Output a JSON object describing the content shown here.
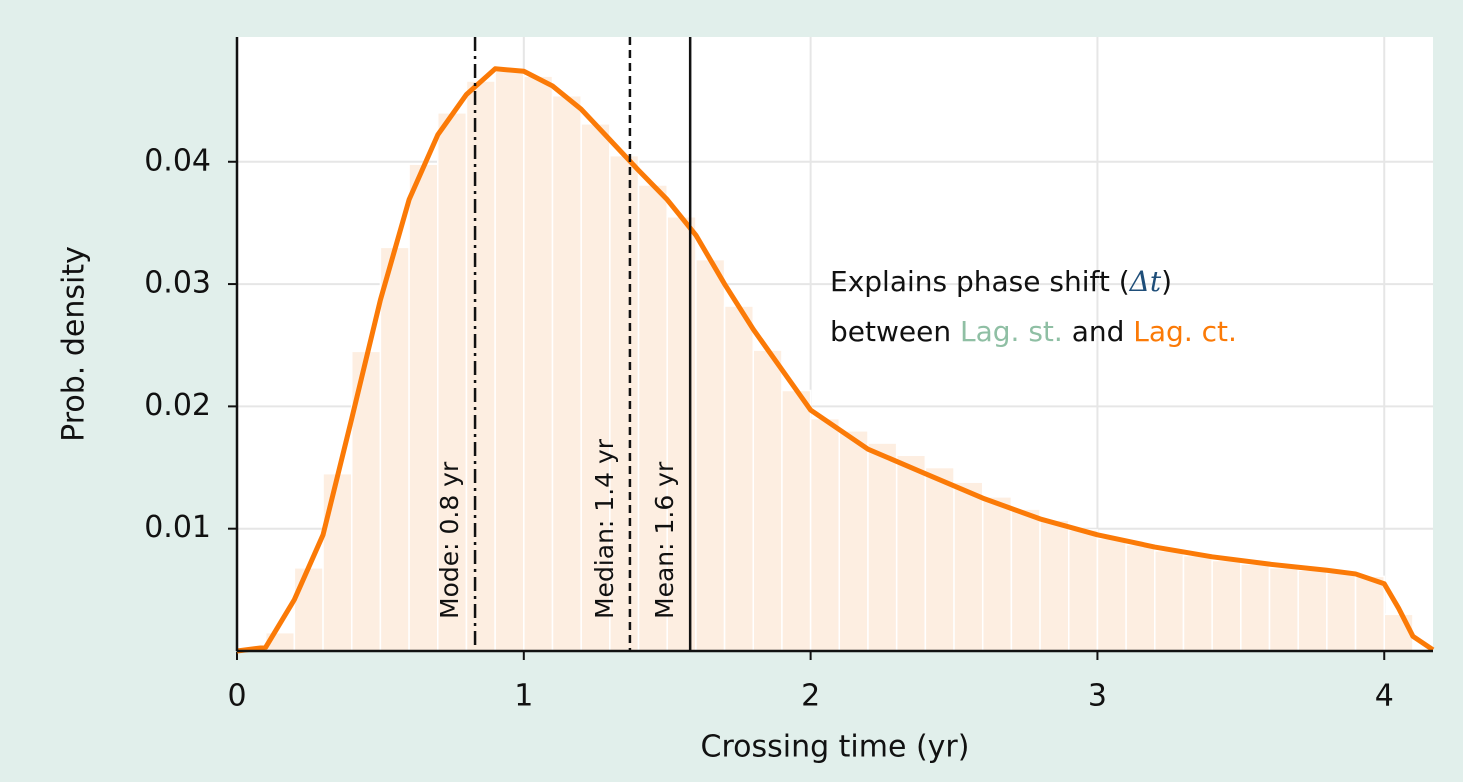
{
  "chart_data": {
    "type": "histogram",
    "xlabel": "Crossing time (yr)",
    "ylabel": "Prob. density",
    "bins": [
      0,
      0.1,
      0.2,
      0.3,
      0.4,
      0.5,
      0.6,
      0.7,
      0.8,
      0.9,
      1.0,
      1.1,
      1.2,
      1.3,
      1.4,
      1.5,
      1.6,
      1.7,
      1.8,
      1.9,
      2.0,
      2.1,
      2.2,
      2.3,
      2.4,
      2.5,
      2.6,
      2.7,
      2.8,
      2.9,
      3.0,
      3.1,
      3.2,
      3.3,
      3.4,
      3.5,
      3.6,
      3.7,
      3.8,
      3.9,
      4.0,
      4.1
    ],
    "values": [
      0.0001,
      0.0015,
      0.0068,
      0.0145,
      0.0245,
      0.033,
      0.0398,
      0.044,
      0.0466,
      0.0474,
      0.047,
      0.0454,
      0.0431,
      0.0405,
      0.0381,
      0.0355,
      0.032,
      0.0282,
      0.0246,
      0.0213,
      0.019,
      0.018,
      0.017,
      0.016,
      0.015,
      0.0138,
      0.0126,
      0.0116,
      0.0107,
      0.0099,
      0.0092,
      0.0087,
      0.0082,
      0.0078,
      0.0074,
      0.0071,
      0.0068,
      0.0066,
      0.0064,
      0.0061,
      0.003
    ],
    "color": "#fdeee1",
    "kde": {
      "color": "#fb7a07",
      "x": [
        0,
        0.1,
        0.2,
        0.3,
        0.4,
        0.5,
        0.6,
        0.7,
        0.8,
        0.9,
        1.0,
        1.1,
        1.2,
        1.3,
        1.4,
        1.5,
        1.6,
        1.7,
        1.8,
        1.9,
        2.0,
        2.2,
        2.4,
        2.6,
        2.8,
        3.0,
        3.2,
        3.4,
        3.6,
        3.8,
        3.9,
        4.0,
        4.05,
        4.1,
        4.17
      ],
      "values": [
        0,
        0.0003,
        0.0042,
        0.0095,
        0.019,
        0.0287,
        0.0369,
        0.0422,
        0.0455,
        0.0476,
        0.0474,
        0.0462,
        0.0443,
        0.0418,
        0.0393,
        0.0369,
        0.034,
        0.03,
        0.0263,
        0.023,
        0.0197,
        0.0165,
        0.0145,
        0.0125,
        0.0108,
        0.0095,
        0.0085,
        0.0077,
        0.0071,
        0.0066,
        0.0063,
        0.0055,
        0.0035,
        0.0012,
        0.0001
      ]
    },
    "markers": [
      {
        "value": 0.83,
        "label": "Mode: 0.8 yr",
        "style": "dashdot"
      },
      {
        "value": 1.37,
        "label": "Median: 1.4 yr",
        "style": "dashed"
      },
      {
        "value": 1.58,
        "label": "Mean: 1.6 yr",
        "style": "solid"
      }
    ],
    "annotation": [
      [
        {
          "text": "Explains phase shift (",
          "color": "#111111"
        },
        {
          "text": "Δt",
          "color": "#1f4e79",
          "italic": true
        },
        {
          "text": ")",
          "color": "#111111"
        }
      ],
      [
        {
          "text": "between ",
          "color": "#111111"
        },
        {
          "text": "Lag. st.",
          "color": "#8fbfa4"
        },
        {
          "text": " and ",
          "color": "#111111"
        },
        {
          "text": "Lag. ct.",
          "color": "#fb7a07"
        }
      ]
    ],
    "xlim": [
      0,
      4.17
    ],
    "ylim": [
      0,
      0.0502
    ],
    "xticks": [
      0,
      1,
      2,
      3,
      4
    ],
    "yticks": [
      0.01,
      0.02,
      0.03,
      0.04
    ],
    "grid": true
  }
}
